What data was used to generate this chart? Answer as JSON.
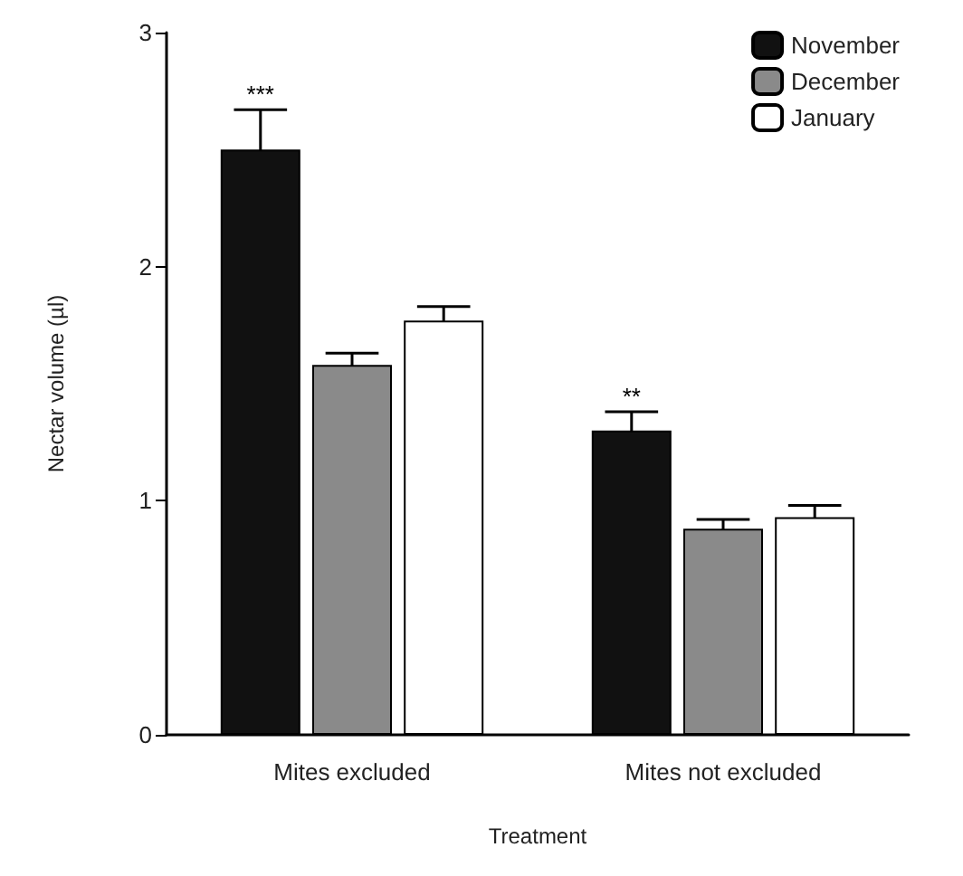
{
  "chart_data": {
    "type": "bar",
    "xlabel": "Treatment",
    "ylabel": "Nectar volume (µl)",
    "categories": [
      "Mites excluded",
      "Mites not excluded"
    ],
    "series": [
      {
        "name": "November",
        "color": "#111111",
        "values": [
          2.5,
          1.3
        ],
        "errors": [
          0.17,
          0.08
        ]
      },
      {
        "name": "December",
        "color": "#8a8a8a",
        "values": [
          1.58,
          0.88
        ],
        "errors": [
          0.05,
          0.04
        ]
      },
      {
        "name": "January",
        "color": "#ffffff",
        "values": [
          1.77,
          0.93
        ],
        "errors": [
          0.06,
          0.05
        ]
      }
    ],
    "ylim": [
      0,
      3
    ],
    "yticks": [
      0,
      1,
      2,
      3
    ],
    "grid": false,
    "legend": "top right",
    "annotations": [
      "***",
      "**"
    ]
  }
}
